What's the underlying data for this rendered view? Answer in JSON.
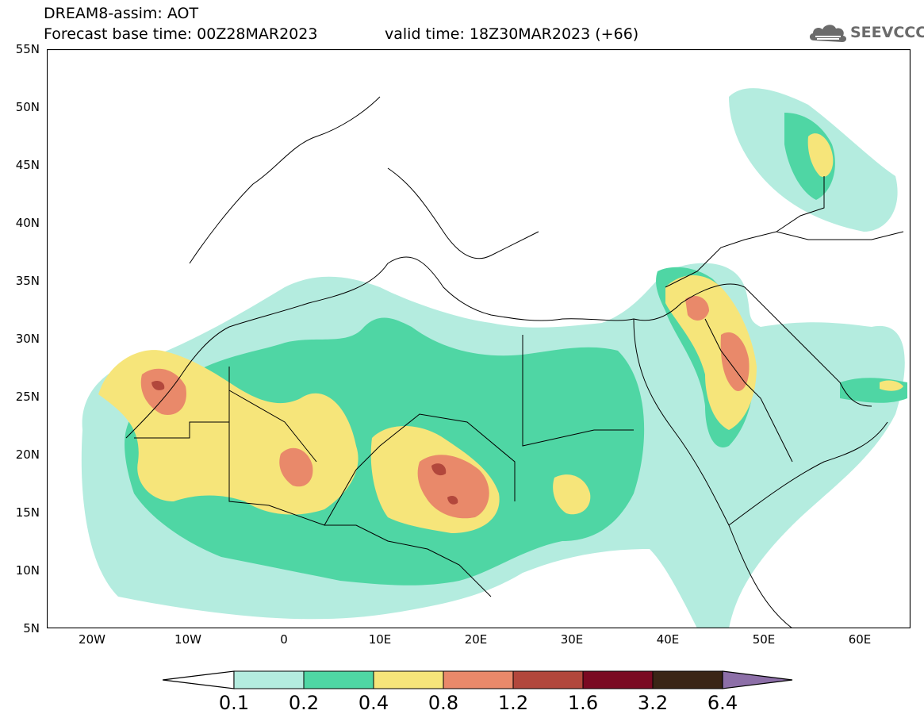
{
  "header": {
    "title_line1": "DREAM8-assim: AOT",
    "base_time": "Forecast base time: 00Z28MAR2023",
    "valid_time": "valid time: 18Z30MAR2023 (+66)",
    "logo_text": "SEEVCCC"
  },
  "map": {
    "region": "North Africa, Middle East and Europe",
    "lon_range": [
      -25,
      65
    ],
    "lat_range": [
      5,
      55
    ],
    "lat_labels": [
      "55N",
      "50N",
      "45N",
      "40N",
      "35N",
      "30N",
      "25N",
      "20N",
      "15N",
      "10N",
      "5N"
    ],
    "lon_labels": [
      "20W",
      "10W",
      "0",
      "10E",
      "20E",
      "30E",
      "40E",
      "50E",
      "60E"
    ]
  },
  "colorbar": {
    "levels": [
      "0.1",
      "0.2",
      "0.4",
      "0.8",
      "1.2",
      "1.6",
      "3.2",
      "6.4"
    ],
    "colors": [
      "#ffffff",
      "#b4ecdf",
      "#4fd6a4",
      "#f6e57a",
      "#e9896a",
      "#b2473c",
      "#7a0a22",
      "#3a2516",
      "#8d6fa8"
    ]
  }
}
